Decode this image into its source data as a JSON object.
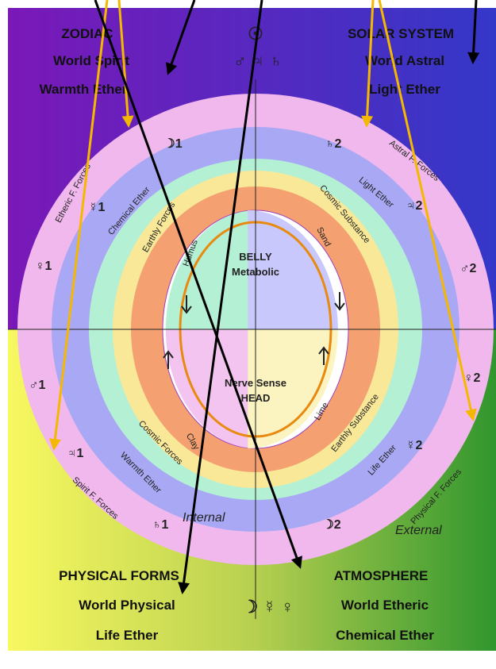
{
  "top_left": {
    "title": "ZODIAC",
    "line1": "World Spirit",
    "line2": "Warmth Ether"
  },
  "top_center": {
    "symbol": "☉",
    "symbols": "♂ ♃ ♄"
  },
  "top_right": {
    "title": "SOLAR SYSTEM",
    "line1": "World Astral",
    "line2": "Light Ether"
  },
  "bottom_left": {
    "title": "PHYSICAL FORMS",
    "line1": "World Physical",
    "line2": "Life Ether"
  },
  "bottom_center": {
    "symbols": "☽ ☿ ♀"
  },
  "bottom_right": {
    "title": "ATMOSPHERE",
    "line1": "World Etheric",
    "line2": "Chemical Ether"
  },
  "rings": {
    "outer": [
      "Etheric F. Forces",
      "Astral F. Forces",
      "Spirit F. Forces",
      "Physical F. Forces"
    ],
    "ether": [
      "Chemical Ether",
      "Light Ether",
      "Warmth Ether",
      "Life Ether"
    ],
    "forces": [
      "Earthly Forces",
      "Cosmic Substance",
      "Cosmic Forces",
      "Earthly Substance"
    ],
    "soil": [
      "Humus",
      "Sand",
      "Clay",
      "Lime"
    ]
  },
  "planets_left": [
    "☽1",
    "☿1",
    "♀1",
    "♂1",
    "♃1",
    "♄1"
  ],
  "planets_right": [
    "♄2",
    "♃2",
    "♂2",
    "♀2",
    "☿2",
    "☽2"
  ],
  "center": {
    "top1": "BELLY",
    "top2": "Metabolic",
    "bottom1": "Nerve Sense",
    "bottom2": "HEAD"
  },
  "internal": "Internal",
  "external": "External"
}
